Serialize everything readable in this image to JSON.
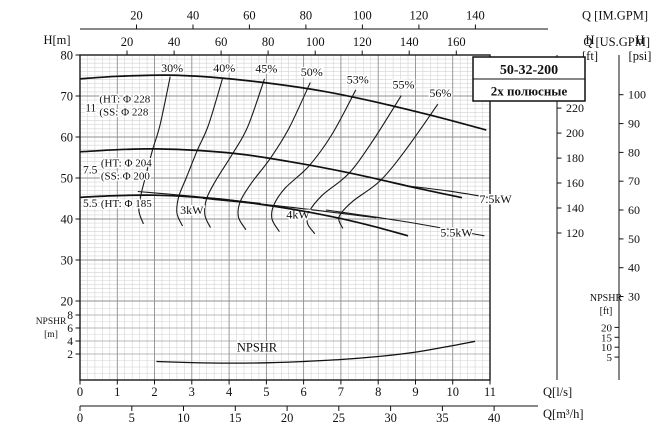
{
  "title_box": {
    "model": "50-32-200",
    "poles": "2х полюсные"
  },
  "axes": {
    "top_im": {
      "unit_label": "Q [IM.GPM]",
      "ticks": [
        20,
        40,
        60,
        80,
        100,
        120,
        140
      ],
      "gpm_per_ls": 13.198
    },
    "top_us": {
      "unit_label": "Q [US.GPM]",
      "ticks": [
        20,
        40,
        60,
        80,
        100,
        120,
        140,
        160
      ],
      "gpm_per_ls": 15.85
    },
    "left_head": {
      "unit_label": "H[m]",
      "ticks": [
        20,
        30,
        40,
        50,
        60,
        70,
        80
      ]
    },
    "left_npshr": {
      "unit_label": "NPSHR",
      "unit_label2": "[m]",
      "ticks": [
        2,
        4,
        6,
        8
      ]
    },
    "right_ft": {
      "unit_label": "H",
      "unit_label2": "[ft]",
      "ticks": [
        120,
        140,
        160,
        180,
        200,
        220
      ],
      "ft_per_m": 3.2808
    },
    "right_psi": {
      "unit_label": "H",
      "unit_label2": "[psi]",
      "ticks": [
        30,
        40,
        50,
        60,
        70,
        80,
        90,
        100
      ],
      "m_per_psi": 0.70307
    },
    "right_npshr_ft": {
      "unit_label": "NPSHR",
      "unit_label2": "[ft]",
      "ticks": [
        5,
        10,
        15,
        20
      ],
      "m_per_ft": 0.3048
    },
    "bottom_ls": {
      "unit_label": "Q[l/s]",
      "ticks": [
        0,
        1,
        2,
        3,
        4,
        5,
        6,
        7,
        8,
        9,
        10,
        11
      ]
    },
    "bottom_m3h": {
      "unit_label": "Q[m³/h]",
      "ticks": [
        0,
        5,
        10,
        15,
        20,
        25,
        30,
        35,
        40
      ],
      "m3h_per_ls": 3.6
    }
  },
  "chart_data": {
    "type": "line",
    "title": "50-32-200",
    "subtitle": "2х полюсные",
    "x_unit": "l/s",
    "xlim": [
      0,
      11
    ],
    "head_ylim": [
      20,
      80
    ],
    "npshr_ylim": [
      0,
      9
    ],
    "grid": true,
    "head_curves": [
      {
        "power": "11",
        "label1": "(HT: Φ 228",
        "label2": "(SS: Φ 228",
        "power_pos": [
          0.14,
          66.2
        ],
        "label1_pos": [
          0.52,
          68.4
        ],
        "label2_pos": [
          0.52,
          65.2
        ],
        "points": [
          [
            0,
            74.2
          ],
          [
            1,
            74.8
          ],
          [
            2.3,
            75.1
          ],
          [
            3.5,
            74.6
          ],
          [
            5,
            73.2
          ],
          [
            6.5,
            71.2
          ],
          [
            8,
            68.4
          ],
          [
            9.5,
            65.1
          ],
          [
            10.9,
            61.7
          ]
        ]
      },
      {
        "power": "7.5",
        "label1": "(HT: Φ 204",
        "label2": "(SS: Φ 200",
        "power_pos": [
          0.08,
          51.1
        ],
        "label1_pos": [
          0.56,
          52.8
        ],
        "label2_pos": [
          0.56,
          49.6
        ],
        "points": [
          [
            0,
            56.4
          ],
          [
            1,
            56.9
          ],
          [
            2,
            57.1
          ],
          [
            3.2,
            56.7
          ],
          [
            4.5,
            55.6
          ],
          [
            6,
            53.4
          ],
          [
            7.5,
            50.7
          ],
          [
            9,
            47.6
          ],
          [
            10.25,
            45.2
          ]
        ]
      },
      {
        "power": "5.5",
        "label1": "(HT: Φ 185",
        "label2": null,
        "power_pos": [
          0.08,
          42.9
        ],
        "label1_pos": [
          0.56,
          42.9
        ],
        "label2_pos": null,
        "points": [
          [
            0,
            45.3
          ],
          [
            1,
            45.7
          ],
          [
            2,
            45.8
          ],
          [
            3,
            45.4
          ],
          [
            4,
            44.6
          ],
          [
            5,
            43.4
          ],
          [
            6,
            41.9
          ],
          [
            7,
            40.1
          ],
          [
            8,
            37.9
          ],
          [
            8.8,
            35.9
          ]
        ]
      }
    ],
    "efficiency_curves": [
      {
        "label": "30%",
        "label_pos": [
          2.47,
          75.9
        ],
        "points": [
          [
            2.42,
            74.7
          ],
          [
            2.15,
            63
          ],
          [
            1.95,
            57.0
          ],
          [
            1.75,
            50
          ],
          [
            1.63,
            45.7
          ],
          [
            1.58,
            42
          ],
          [
            1.7,
            38.8
          ]
        ]
      },
      {
        "label": "40%",
        "label_pos": [
          3.87,
          75.9
        ],
        "points": [
          [
            3.83,
            74.5
          ],
          [
            3.45,
            63
          ],
          [
            3.15,
            56.8
          ],
          [
            2.85,
            50
          ],
          [
            2.65,
            45.5
          ],
          [
            2.6,
            41.5
          ],
          [
            2.75,
            38.3
          ]
        ]
      },
      {
        "label": "45%",
        "label_pos": [
          5.0,
          75.7
        ],
        "points": [
          [
            4.95,
            74.2
          ],
          [
            4.5,
            62.5
          ],
          [
            4.1,
            56.0
          ],
          [
            3.65,
            49.5
          ],
          [
            3.4,
            45.0
          ],
          [
            3.35,
            41
          ],
          [
            3.5,
            37.9
          ]
        ]
      },
      {
        "label": "50%",
        "label_pos": [
          6.22,
          74.9
        ],
        "points": [
          [
            6.18,
            73.3
          ],
          [
            5.6,
            62
          ],
          [
            5.1,
            54.7
          ],
          [
            4.6,
            48.8
          ],
          [
            4.3,
            44.3
          ],
          [
            4.25,
            40.5
          ],
          [
            4.45,
            37.4
          ]
        ]
      },
      {
        "label": "53%",
        "label_pos": [
          7.45,
          73.0
        ],
        "points": [
          [
            7.4,
            71.5
          ],
          [
            6.75,
            60.5
          ],
          [
            6.15,
            53.0
          ],
          [
            5.5,
            47.5
          ],
          [
            5.2,
            43.4
          ],
          [
            5.15,
            40
          ],
          [
            5.35,
            36.9
          ]
        ]
      },
      {
        "label": "55%",
        "label_pos": [
          8.68,
          71.8
        ],
        "points": [
          [
            8.62,
            70.1
          ],
          [
            7.85,
            59
          ],
          [
            7.2,
            51.0
          ],
          [
            6.5,
            45.8
          ],
          [
            6.15,
            41.8
          ],
          [
            6.1,
            39
          ],
          [
            6.3,
            36.4
          ]
        ]
      },
      {
        "label": "56%",
        "label_pos": [
          9.67,
          69.7
        ],
        "points": [
          [
            9.6,
            68.0
          ],
          [
            8.75,
            57
          ],
          [
            8.05,
            49.3
          ],
          [
            7.3,
            44.2
          ],
          [
            6.95,
            40.5
          ],
          [
            7.05,
            37.7
          ]
        ]
      }
    ],
    "power_curves": [
      {
        "label": "3kW",
        "label_pos": [
          3.0,
          41.2
        ],
        "points": [
          [
            1.55,
            46.7
          ],
          [
            3.2,
            45.4
          ],
          [
            4.85,
            43.8
          ]
        ]
      },
      {
        "label": "4kW",
        "label_pos": [
          5.85,
          40.1
        ],
        "points": [
          [
            3.3,
            45.0
          ],
          [
            5.6,
            42.9
          ],
          [
            7.95,
            40.3
          ]
        ]
      },
      {
        "label": "5.5kW",
        "label_pos": [
          10.1,
          35.7
        ],
        "points": [
          [
            6.6,
            42.2
          ],
          [
            8.7,
            39.4
          ],
          [
            10.85,
            35.9
          ]
        ]
      },
      {
        "label": "7.5kW",
        "label_pos": [
          11.15,
          43.9
        ],
        "points": [
          [
            8.75,
            48.1
          ],
          [
            9.9,
            46.8
          ],
          [
            11.0,
            45.2
          ]
        ]
      }
    ],
    "npshr_curve": {
      "label": "NPSHR",
      "label_pos": [
        4.75,
        2.35
      ],
      "points": [
        [
          2.05,
          0.85
        ],
        [
          3,
          0.68
        ],
        [
          4,
          0.6
        ],
        [
          5,
          0.65
        ],
        [
          6,
          0.85
        ],
        [
          7,
          1.15
        ],
        [
          8,
          1.62
        ],
        [
          9,
          2.3
        ],
        [
          10,
          3.3
        ],
        [
          10.6,
          3.95
        ]
      ]
    }
  }
}
